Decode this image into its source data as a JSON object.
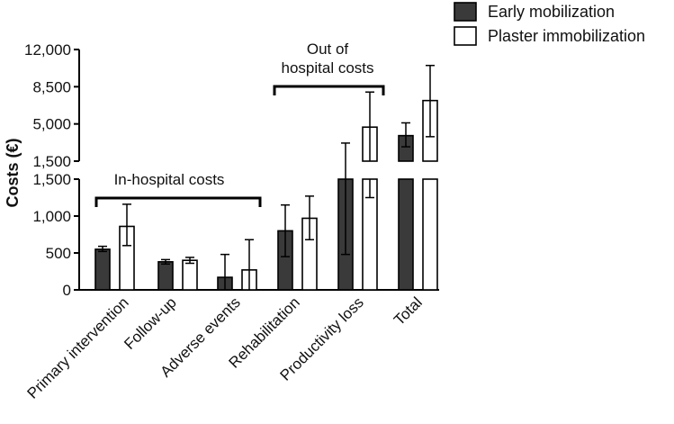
{
  "chart_data": {
    "type": "bar",
    "ylabel": "Costs (€)",
    "categories": [
      "Primary intervention",
      "Follow-up",
      "Adverse events",
      "Rehabilitation",
      "Productivity loss",
      "Total"
    ],
    "series": [
      {
        "name": "Early mobilization",
        "color": "#3a3a3a",
        "values": [
          550,
          380,
          170,
          800,
          1500,
          3900
        ],
        "error_low": [
          520,
          350,
          0,
          450,
          480,
          2850
        ],
        "error_high": [
          590,
          410,
          480,
          1150,
          3200,
          5100
        ]
      },
      {
        "name": "Plaster immobilization",
        "color": "#ffffff",
        "values": [
          860,
          400,
          270,
          970,
          4700,
          7200
        ],
        "error_low": [
          600,
          360,
          0,
          680,
          1250,
          3800
        ],
        "error_high": [
          1160,
          440,
          680,
          1270,
          8000,
          10500
        ]
      }
    ],
    "axis_break": true,
    "lower_axis": {
      "range": [
        0,
        1500
      ],
      "ticks": [
        "0",
        "500",
        "1,000",
        "1,500"
      ]
    },
    "upper_axis": {
      "range": [
        1500,
        12000
      ],
      "ticks": [
        "1,500",
        "5,000",
        "8,500",
        "12,000"
      ]
    },
    "annotations": [
      {
        "label": "In-hospital costs",
        "spans": [
          "Primary intervention",
          "Rehabilitation"
        ]
      },
      {
        "label_lines": [
          "Out of",
          "hospital costs"
        ],
        "spans": [
          "Rehabilitation",
          "Productivity loss"
        ]
      }
    ],
    "legend": "top-right"
  }
}
